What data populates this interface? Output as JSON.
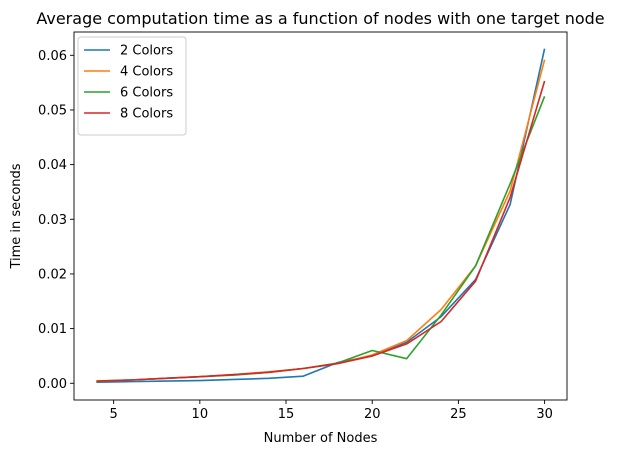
{
  "chart_data": {
    "type": "line",
    "title": "Average computation time as a function of nodes with one target node",
    "xlabel": "Number of Nodes",
    "ylabel": "Time in seconds",
    "xlim": [
      2.7,
      31.3
    ],
    "ylim": [
      -0.00306,
      0.06426
    ],
    "xticks": [
      5,
      10,
      15,
      20,
      25,
      30
    ],
    "yticks": [
      0.0,
      0.01,
      0.02,
      0.03,
      0.04,
      0.05,
      0.06
    ],
    "ytick_labels": [
      "0.00",
      "0.01",
      "0.02",
      "0.03",
      "0.04",
      "0.05",
      "0.06"
    ],
    "legend_position": "upper-left",
    "x": [
      4,
      6,
      8,
      10,
      12,
      14,
      16,
      18,
      20,
      22,
      24,
      26,
      28,
      30
    ],
    "series": [
      {
        "name": "2 Colors",
        "color": "#1f77b4",
        "values": [
          0.0002,
          0.0003,
          0.0004,
          0.0005,
          0.0007,
          0.0009,
          0.0013,
          0.0038,
          0.005,
          0.0075,
          0.0122,
          0.019,
          0.0327,
          0.0612
        ]
      },
      {
        "name": "4 Colors",
        "color": "#ff7f0e",
        "values": [
          0.0004,
          0.0006,
          0.0009,
          0.0012,
          0.0016,
          0.0021,
          0.0027,
          0.0036,
          0.0052,
          0.0078,
          0.0135,
          0.0215,
          0.0352,
          0.0592
        ]
      },
      {
        "name": "6 Colors",
        "color": "#2ca02c",
        "values": [
          0.0003,
          0.0006,
          0.0009,
          0.0012,
          0.0015,
          0.002,
          0.0027,
          0.0037,
          0.006,
          0.0045,
          0.0125,
          0.0215,
          0.0365,
          0.0525
        ]
      },
      {
        "name": "8 Colors",
        "color": "#d62728",
        "values": [
          0.0004,
          0.0006,
          0.0009,
          0.0012,
          0.0016,
          0.002,
          0.0027,
          0.0036,
          0.005,
          0.0072,
          0.0113,
          0.0187,
          0.034,
          0.0553
        ]
      }
    ]
  }
}
